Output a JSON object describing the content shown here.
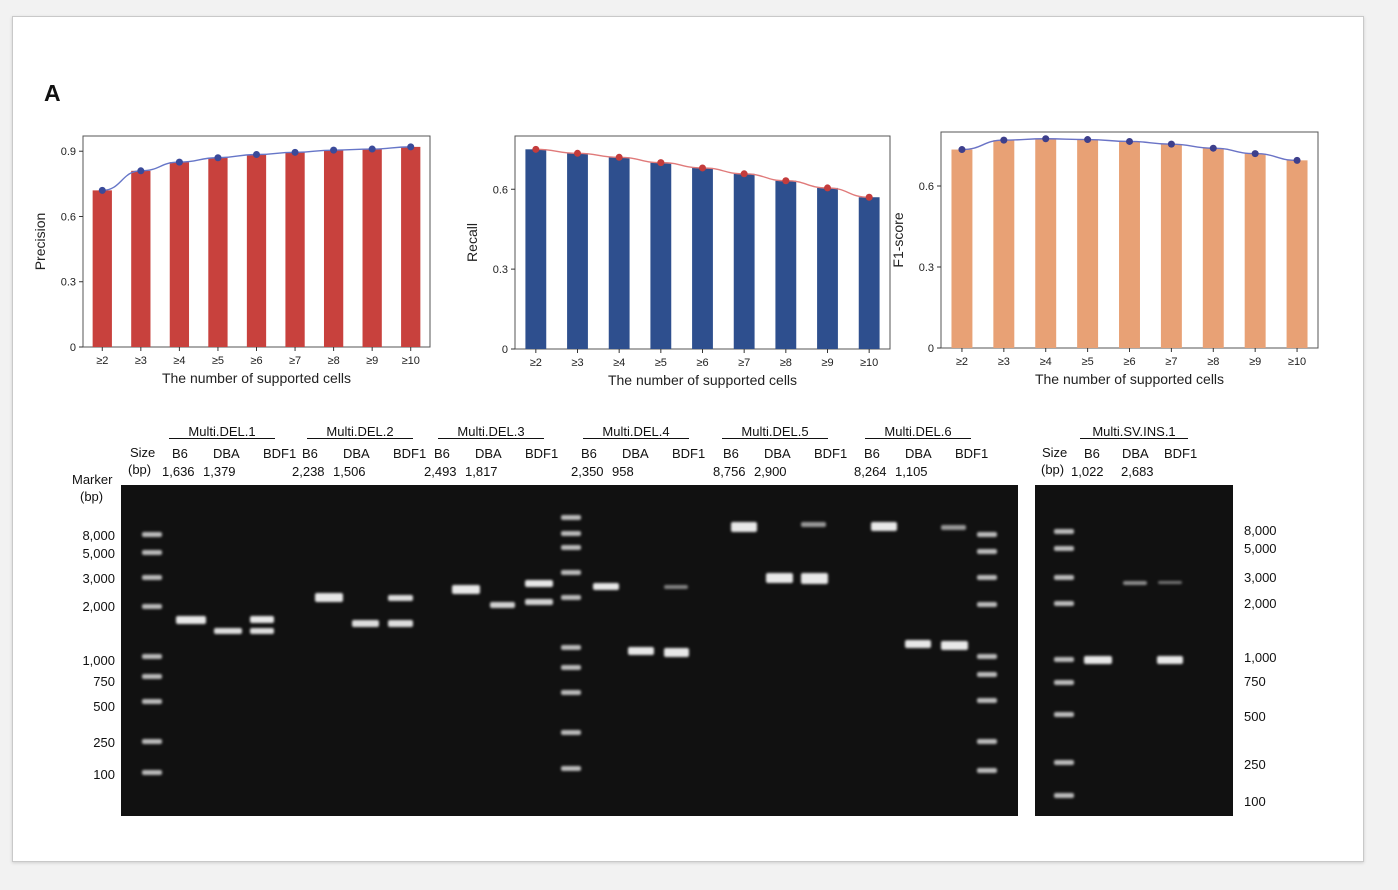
{
  "panel_label": "A",
  "chart_data": [
    {
      "type": "bar",
      "categories": [
        "≥2",
        "≥3",
        "≥4",
        "≥5",
        "≥6",
        "≥7",
        "≥8",
        "≥9",
        "≥10"
      ],
      "values": [
        0.72,
        0.81,
        0.85,
        0.87,
        0.885,
        0.895,
        0.905,
        0.91,
        0.92
      ],
      "xlabel": "The number of supported cells",
      "ylabel": "Precision",
      "ylim": [
        0,
        0.97
      ],
      "yticks": [
        0,
        0.3,
        0.6,
        0.9
      ],
      "ytick_labels": [
        "0",
        "0.3",
        "0.6",
        "0.9"
      ],
      "bar_color": "#c8413d",
      "line_color": "#6676c8",
      "point_color": "#3a4a9a",
      "grid": false
    },
    {
      "type": "bar",
      "categories": [
        "≥2",
        "≥3",
        "≥4",
        "≥5",
        "≥6",
        "≥7",
        "≥8",
        "≥9",
        "≥10"
      ],
      "values": [
        0.75,
        0.735,
        0.72,
        0.7,
        0.68,
        0.658,
        0.632,
        0.605,
        0.57
      ],
      "xlabel": "The number of supported cells",
      "ylabel": "Recall",
      "ylim": [
        0,
        0.8
      ],
      "yticks": [
        0,
        0.3,
        0.6
      ],
      "ytick_labels": [
        "0",
        "0.3",
        "0.6"
      ],
      "bar_color": "#2e4f8e",
      "line_color": "#e07a7a",
      "point_color": "#c43c3c",
      "grid": false
    },
    {
      "type": "bar",
      "categories": [
        "≥2",
        "≥3",
        "≥4",
        "≥5",
        "≥6",
        "≥7",
        "≥8",
        "≥9",
        "≥10"
      ],
      "values": [
        0.735,
        0.77,
        0.775,
        0.772,
        0.765,
        0.755,
        0.74,
        0.72,
        0.695
      ],
      "xlabel": "The number of supported cells",
      "ylabel": "F1-score",
      "ylim": [
        0,
        0.8
      ],
      "yticks": [
        0,
        0.3,
        0.6
      ],
      "ytick_labels": [
        "0",
        "0.3",
        "0.6"
      ],
      "bar_color": "#e8a175",
      "line_color": "#6a73c6",
      "point_color": "#3d3f8c",
      "grid": false
    }
  ],
  "gel": {
    "size_label": "Size",
    "bp_label": "(bp)",
    "marker_label": "Marker",
    "marker_bp_label": "(bp)",
    "lane_names": [
      "B6",
      "DBA",
      "BDF1"
    ],
    "groups": [
      {
        "name": "Multi.DEL.1",
        "sizes": [
          "1,636",
          "1,379"
        ]
      },
      {
        "name": "Multi.DEL.2",
        "sizes": [
          "2,238",
          "1,506"
        ]
      },
      {
        "name": "Multi.DEL.3",
        "sizes": [
          "2,493",
          "1,817"
        ]
      },
      {
        "name": "Multi.DEL.4",
        "sizes": [
          "2,350",
          "958"
        ]
      },
      {
        "name": "Multi.DEL.5",
        "sizes": [
          "8,756",
          "2,900"
        ]
      },
      {
        "name": "Multi.DEL.6",
        "sizes": [
          "8,264",
          "1,105"
        ]
      }
    ],
    "ins_group": {
      "name": "Multi.SV.INS.1",
      "sizes": [
        "1,022",
        "2,683"
      ]
    },
    "left_marker_ladder": [
      "8,000",
      "5,000",
      "3,000",
      "2,000",
      "1,000",
      "750",
      "500",
      "250",
      "100"
    ],
    "right_marker_ladder": [
      "8,000",
      "5,000",
      "3,000",
      "2,000",
      "1,000",
      "750",
      "500",
      "250",
      "100"
    ]
  }
}
